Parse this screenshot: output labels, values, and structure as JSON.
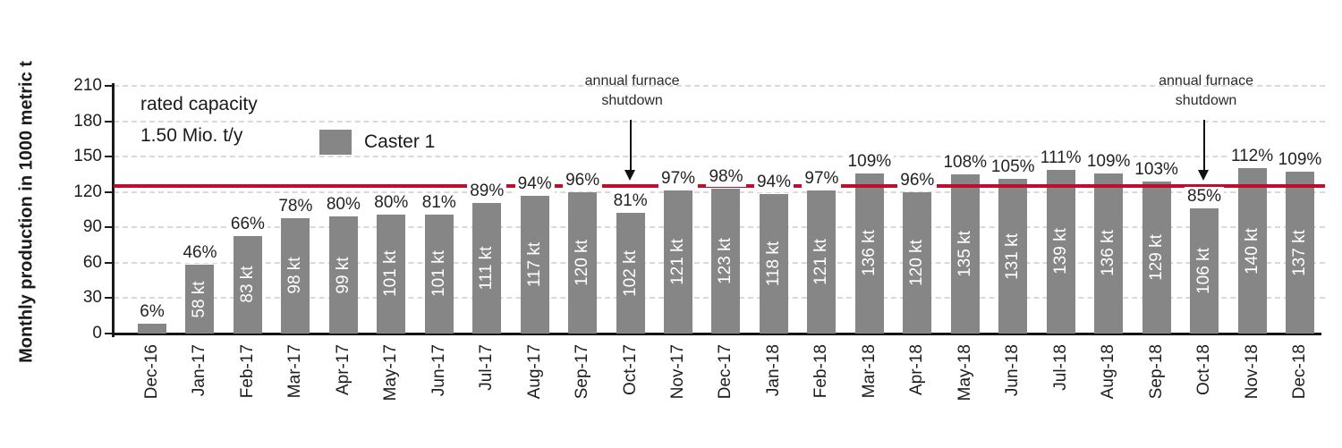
{
  "chart_data": {
    "type": "bar",
    "title": "",
    "ylabel": "Monthly production in 1000 metric t",
    "xlabel": "",
    "ylim": [
      0,
      210
    ],
    "yticks": [
      0,
      30,
      60,
      90,
      120,
      150,
      180,
      210
    ],
    "grid": "horizontal-dashed",
    "legend_position": "top-left-inside",
    "colors": {
      "bar": "#868686",
      "capacity_line": "#be0e2d",
      "gridline": "#d9d9d9",
      "axis": "#1b1b1b",
      "bar_label_text": "#ffffff",
      "pct_label_text": "#222222"
    },
    "legend": [
      {
        "label": "Caster 1",
        "color": "#868686"
      }
    ],
    "capacity_line": {
      "value": 125,
      "note_line1": "rated capacity",
      "note_line2": "1.50 Mio. t/y"
    },
    "categories": [
      "Dec-16",
      "Jan-17",
      "Feb-17",
      "Mar-17",
      "Apr-17",
      "May-17",
      "Jun-17",
      "Jul-17",
      "Aug-17",
      "Sep-17",
      "Oct-17",
      "Nov-17",
      "Dec-17",
      "Jan-18",
      "Feb-18",
      "Mar-18",
      "Apr-18",
      "May-18",
      "Jun-18",
      "Jul-18",
      "Aug-18",
      "Sep-18",
      "Oct-18",
      "Nov-18",
      "Dec-18"
    ],
    "series": [
      {
        "name": "Caster 1",
        "values_kt": [
          8,
          58,
          83,
          98,
          99,
          101,
          101,
          111,
          117,
          120,
          102,
          121,
          123,
          118,
          121,
          136,
          120,
          135,
          131,
          139,
          136,
          129,
          106,
          140,
          137
        ],
        "bar_labels": [
          null,
          "58 kt",
          "83 kt",
          "98 kt",
          "99 kt",
          "101 kt",
          "101 kt",
          "111 kt",
          "117 kt",
          "120 kt",
          "102 kt",
          "121 kt",
          "123 kt",
          "118 kt",
          "121 kt",
          "136 kt",
          "120 kt",
          "135 kt",
          "131 kt",
          "139 kt",
          "136 kt",
          "129 kt",
          "106 kt",
          "140 kt",
          "137 kt"
        ],
        "pct_labels": [
          "6%",
          "46%",
          "66%",
          "78%",
          "80%",
          "80%",
          "81%",
          "89%",
          "94%",
          "96%",
          "81%",
          "97%",
          "98%",
          "94%",
          "97%",
          "109%",
          "96%",
          "108%",
          "105%",
          "111%",
          "109%",
          "103%",
          "85%",
          "112%",
          "109%"
        ]
      }
    ],
    "annotations": [
      {
        "line1": "annual furnace",
        "line2": "shutdown",
        "category": "Oct-17",
        "category_index": 10
      },
      {
        "line1": "annual furnace",
        "line2": "shutdown",
        "category": "Oct-18",
        "category_index": 22
      }
    ]
  }
}
